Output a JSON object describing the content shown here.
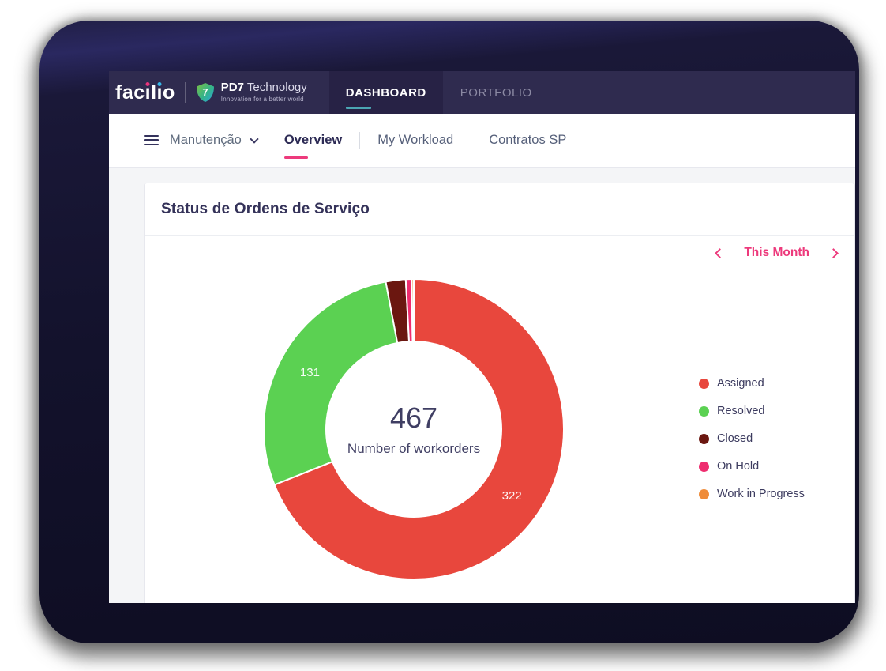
{
  "header": {
    "brand_parts": [
      {
        "t": "fac"
      },
      {
        "t": "ı",
        "dot": "#e9337c"
      },
      {
        "t": "l"
      },
      {
        "t": "ı",
        "dot": "#35b6e9"
      },
      {
        "t": "o"
      }
    ],
    "brand": "facilio",
    "partner": {
      "name_bold": "PD7",
      "name_rest": " Technology",
      "tagline": "Innovation for a better world",
      "icon_glyph": "7"
    },
    "tabs": [
      {
        "label": "DASHBOARD",
        "active": true
      },
      {
        "label": "PORTFOLIO",
        "active": false
      }
    ]
  },
  "subnav": {
    "menu_label": "Manutenção",
    "tabs": [
      {
        "label": "Overview",
        "active": true
      },
      {
        "label": "My Workload",
        "active": false
      },
      {
        "label": "Contratos SP",
        "active": false
      }
    ]
  },
  "card": {
    "title": "Status de Ordens de Serviço",
    "period_label": "This Month"
  },
  "chart_data": {
    "type": "pie",
    "donut": true,
    "title": "Status de Ordens de Serviço",
    "total": 467,
    "center": {
      "value": "467",
      "label": "Number of workorders"
    },
    "series": [
      {
        "name": "Assigned",
        "value": 322,
        "color": "#e8473d"
      },
      {
        "name": "Resolved",
        "value": 131,
        "color": "#5bd152"
      },
      {
        "name": "Closed",
        "value": 10,
        "color": "#6b1710"
      },
      {
        "name": "On Hold",
        "value": 3,
        "color": "#ee2d6f"
      },
      {
        "name": "Work in Progress",
        "value": 1,
        "color": "#ef8c3a"
      }
    ],
    "shown_slice_labels": [
      322,
      131
    ],
    "start_angle_deg": 0,
    "direction": "clockwise",
    "legend_position": "right",
    "accent_pink": "#ed3a7c",
    "tab_underline_teal": "#4ba6b3"
  }
}
